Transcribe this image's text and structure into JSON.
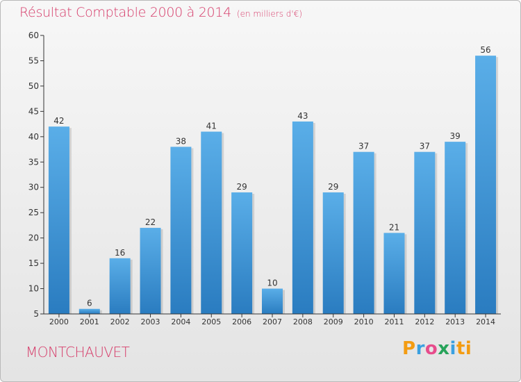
{
  "header": {
    "title": "Résultat Comptable 2000 à 2014",
    "subtitle": "(en milliers d'€)"
  },
  "footer": {
    "commune": "MONTCHAUVET",
    "logo_letters": [
      "P",
      "r",
      "o",
      "x",
      "i",
      "ti"
    ]
  },
  "colors": {
    "title": "#d63c6a",
    "bar_top": "#5aaee8",
    "bar_bottom": "#2a7cc0",
    "axis": "#333333"
  },
  "chart_data": {
    "type": "bar",
    "title": "Résultat Comptable 2000 à 2014",
    "ylabel": "(en milliers d'€)",
    "xlabel": "",
    "categories": [
      "2000",
      "2001",
      "2002",
      "2003",
      "2004",
      "2005",
      "2006",
      "2007",
      "2008",
      "2009",
      "2010",
      "2011",
      "2012",
      "2013",
      "2014"
    ],
    "values": [
      42,
      6,
      16,
      22,
      38,
      41,
      29,
      10,
      43,
      29,
      37,
      21,
      37,
      39,
      56
    ],
    "ylim": [
      5,
      60
    ],
    "yticks": [
      5,
      10,
      15,
      20,
      25,
      30,
      35,
      40,
      45,
      50,
      55,
      60
    ],
    "grid": false,
    "data_labels": true
  }
}
